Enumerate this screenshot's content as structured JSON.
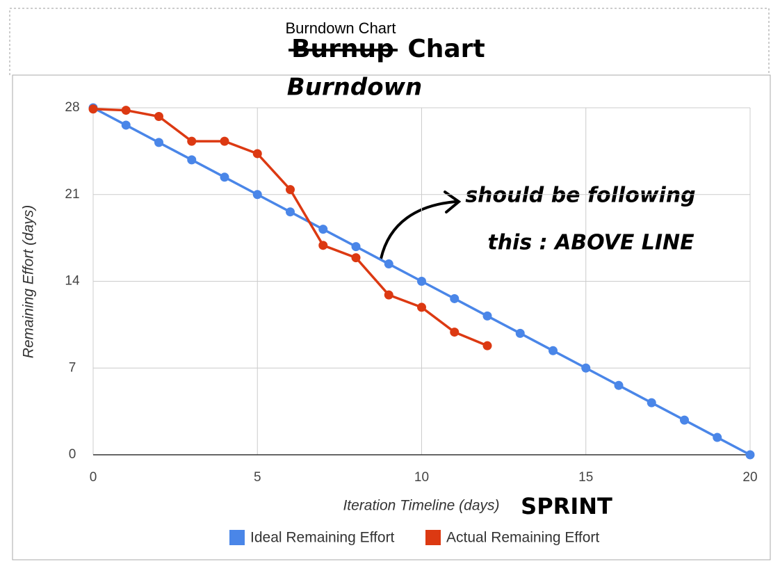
{
  "chart_data": {
    "type": "line",
    "title": "Burndown Chart",
    "annotations": [
      "Burnup",
      "Chart",
      "Burndown",
      "should be following",
      "this : ABOVE LINE",
      "SPRINT"
    ],
    "x_label": "Iteration Timeline (days)",
    "y_label": "Remaining Effort (days)",
    "x": [
      0,
      1,
      2,
      3,
      4,
      5,
      6,
      7,
      8,
      9,
      10,
      11,
      12,
      13,
      14,
      15,
      16,
      17,
      18,
      19,
      20
    ],
    "series": [
      {
        "name": "Ideal Remaining Effort",
        "color": "#4a86e8",
        "values": [
          28,
          26.6,
          25.2,
          23.8,
          22.4,
          21,
          19.6,
          18.2,
          16.8,
          15.4,
          14,
          12.6,
          11.2,
          9.8,
          8.4,
          7,
          5.6,
          4.2,
          2.8,
          1.4,
          0
        ]
      },
      {
        "name": "Actual Remaining Effort",
        "color": "#dc3912",
        "values": [
          27.9,
          27.8,
          27.3,
          25.3,
          25.3,
          24.3,
          21.4,
          16.9,
          15.9,
          12.9,
          11.9,
          9.9,
          8.8,
          null,
          null,
          null,
          null,
          null,
          null,
          null,
          null
        ]
      }
    ],
    "xlim": [
      0,
      20
    ],
    "xticks": [
      0,
      5,
      10,
      15,
      20
    ],
    "ylim": [
      0,
      28
    ],
    "yticks": [
      0,
      7,
      14,
      21,
      28
    ],
    "grid": true,
    "legend": "bottom"
  }
}
